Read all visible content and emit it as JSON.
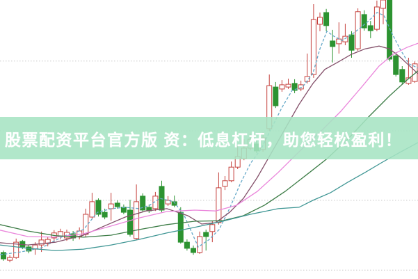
{
  "banner": {
    "text": "股票配资平台官方版 资：低息杠杆，助您轻松盈利！",
    "bg_color": "#a6e4c3",
    "text_color": "#ffffff"
  },
  "chart_data": {
    "type": "candlestick",
    "title": "",
    "xlabel": "",
    "ylabel": "",
    "note": "no axis tick labels visible; prices are relative units 0-100 of chart height",
    "ylim": [
      0,
      100
    ],
    "x_start": 5,
    "x_step": 9.1,
    "grid_on": true,
    "gridlines": [
      78.1,
      53.1,
      28.2,
      3.2
    ],
    "grid_color": "#c8c8c8",
    "up_color": "#c5403c",
    "down_color": "#2c9331",
    "candles": [
      [
        9.5,
        10.2,
        6.5,
        7.2
      ],
      [
        6.7,
        8.5,
        6.0,
        7.7
      ],
      [
        7.7,
        14.5,
        7.2,
        13.2
      ],
      [
        13.5,
        14.0,
        10.7,
        11.5
      ],
      [
        11.5,
        12.2,
        9.2,
        10.0
      ],
      [
        10.7,
        13.2,
        8.7,
        12.2
      ],
      [
        12.2,
        17.0,
        9.7,
        14.0
      ],
      [
        12.7,
        15.0,
        11.7,
        14.2
      ],
      [
        14.7,
        17.5,
        13.0,
        16.5
      ],
      [
        15.2,
        18.0,
        14.2,
        17.0
      ],
      [
        14.7,
        17.7,
        13.7,
        16.7
      ],
      [
        16.2,
        17.2,
        13.7,
        14.7
      ],
      [
        15.2,
        18.5,
        14.2,
        17.2
      ],
      [
        16.0,
        25.2,
        15.2,
        23.2
      ],
      [
        22.2,
        30.9,
        21.4,
        27.7
      ],
      [
        28.2,
        28.9,
        22.4,
        23.2
      ],
      [
        23.9,
        25.2,
        21.4,
        22.2
      ],
      [
        25.2,
        30.9,
        20.9,
        26.9
      ],
      [
        27.2,
        28.2,
        25.2,
        25.9
      ],
      [
        25.7,
        26.7,
        23.2,
        23.9
      ],
      [
        24.7,
        28.4,
        15.2,
        16.0
      ],
      [
        14.5,
        33.9,
        14.0,
        27.7
      ],
      [
        29.7,
        30.7,
        23.9,
        24.7
      ],
      [
        25.7,
        26.7,
        23.7,
        24.4
      ],
      [
        25.2,
        31.2,
        24.4,
        29.7
      ],
      [
        33.2,
        35.2,
        23.9,
        24.7
      ],
      [
        26.9,
        29.7,
        26.2,
        28.2
      ],
      [
        27.7,
        29.9,
        25.7,
        26.4
      ],
      [
        23.9,
        25.7,
        12.7,
        13.2
      ],
      [
        13.2,
        14.2,
        10.2,
        11.0
      ],
      [
        11.0,
        12.0,
        8.7,
        9.5
      ],
      [
        9.5,
        17.0,
        9.0,
        15.2
      ],
      [
        16.7,
        17.7,
        10.2,
        15.2
      ],
      [
        17.0,
        20.7,
        13.2,
        19.5
      ],
      [
        20.2,
        38.2,
        19.5,
        32.7
      ],
      [
        33.2,
        36.9,
        31.9,
        35.2
      ],
      [
        35.2,
        42.1,
        34.7,
        40.1
      ],
      [
        40.1,
        47.6,
        39.4,
        43.9
      ],
      [
        43.1,
        50.1,
        42.6,
        46.9
      ],
      [
        46.9,
        52.1,
        46.1,
        50.1
      ],
      [
        48.4,
        49.6,
        45.1,
        45.9
      ],
      [
        46.4,
        52.6,
        45.6,
        50.6
      ],
      [
        53.9,
        73.3,
        53.1,
        69.3
      ],
      [
        68.8,
        70.6,
        61.3,
        62.1
      ],
      [
        68.1,
        71.3,
        67.1,
        69.6
      ],
      [
        68.8,
        71.8,
        68.1,
        69.8
      ],
      [
        70.1,
        71.6,
        66.6,
        67.6
      ],
      [
        68.1,
        71.1,
        67.3,
        69.6
      ],
      [
        70.8,
        80.8,
        70.1,
        72.6
      ],
      [
        73.3,
        98.5,
        72.1,
        93.0
      ],
      [
        91.3,
        95.5,
        88.8,
        93.8
      ],
      [
        95.5,
        96.8,
        88.8,
        90.8
      ],
      [
        85.3,
        89.3,
        77.6,
        83.3
      ],
      [
        84.3,
        92.0,
        80.8,
        86.0
      ],
      [
        85.0,
        91.5,
        83.8,
        87.0
      ],
      [
        87.5,
        88.8,
        79.3,
        82.0
      ],
      [
        82.5,
        97.0,
        81.8,
        95.8
      ],
      [
        94.8,
        96.3,
        89.0,
        90.0
      ],
      [
        90.8,
        92.5,
        86.3,
        89.0
      ],
      [
        89.5,
        99.8,
        88.8,
        97.5
      ],
      [
        97.0,
        100,
        91.3,
        100
      ],
      [
        100,
        100,
        78.0,
        78.8
      ],
      [
        80.0,
        81.3,
        72.6,
        73.3
      ],
      [
        75.1,
        76.3,
        69.8,
        70.6
      ],
      [
        70.1,
        79.3,
        69.6,
        72.1
      ],
      [
        70.8,
        78.0,
        70.3,
        77.1
      ],
      [
        76.3,
        77.1,
        70.3,
        71.3
      ]
    ],
    "series": [
      {
        "name": "ma-fast-blue",
        "color": "#64a8c8",
        "dashed": true,
        "points": [
          [
            0,
            8.7
          ],
          [
            30,
            9.7
          ],
          [
            60,
            11.2
          ],
          [
            90,
            15.2
          ],
          [
            120,
            17.7
          ],
          [
            140,
            23.9
          ],
          [
            160,
            25.2
          ],
          [
            180,
            25.7
          ],
          [
            200,
            25.2
          ],
          [
            215,
            26.4
          ],
          [
            230,
            28.9
          ],
          [
            250,
            27.7
          ],
          [
            265,
            22.7
          ],
          [
            285,
            11.5
          ],
          [
            300,
            14.0
          ],
          [
            315,
            17.7
          ],
          [
            330,
            25.2
          ],
          [
            345,
            33.9
          ],
          [
            360,
            41.4
          ],
          [
            375,
            46.4
          ],
          [
            390,
            53.9
          ],
          [
            405,
            61.3
          ],
          [
            420,
            67.6
          ],
          [
            435,
            68.8
          ],
          [
            450,
            73.8
          ],
          [
            460,
            82.5
          ],
          [
            470,
            88.8
          ],
          [
            480,
            87.0
          ],
          [
            492,
            85.5
          ],
          [
            505,
            87.5
          ],
          [
            518,
            90.0
          ],
          [
            530,
            92.5
          ],
          [
            542,
            95.5
          ],
          [
            552,
            94.5
          ],
          [
            562,
            88.8
          ],
          [
            575,
            82.5
          ],
          [
            588,
            77.1
          ],
          [
            601,
            75.6
          ]
        ]
      },
      {
        "name": "ma-maroon",
        "color": "#84506a",
        "dashed": false,
        "points": [
          [
            0,
            13.0
          ],
          [
            40,
            12.2
          ],
          [
            80,
            13.2
          ],
          [
            120,
            15.7
          ],
          [
            150,
            19.0
          ],
          [
            180,
            22.2
          ],
          [
            210,
            24.4
          ],
          [
            240,
            25.2
          ],
          [
            270,
            22.7
          ],
          [
            290,
            19.7
          ],
          [
            310,
            20.2
          ],
          [
            330,
            23.9
          ],
          [
            350,
            28.9
          ],
          [
            370,
            36.4
          ],
          [
            390,
            45.1
          ],
          [
            410,
            53.9
          ],
          [
            430,
            62.6
          ],
          [
            450,
            70.1
          ],
          [
            467,
            75.1
          ],
          [
            485,
            77.6
          ],
          [
            505,
            80.5
          ],
          [
            525,
            82.5
          ],
          [
            545,
            83.5
          ],
          [
            560,
            82.5
          ],
          [
            575,
            79.6
          ],
          [
            590,
            76.1
          ],
          [
            601,
            73.6
          ]
        ]
      },
      {
        "name": "ma-pink",
        "color": "#ea85db",
        "dashed": false,
        "points": [
          [
            0,
            17.5
          ],
          [
            40,
            15.2
          ],
          [
            80,
            15.0
          ],
          [
            120,
            16.2
          ],
          [
            160,
            19.0
          ],
          [
            200,
            21.9
          ],
          [
            240,
            24.2
          ],
          [
            280,
            24.7
          ],
          [
            310,
            24.4
          ],
          [
            340,
            26.4
          ],
          [
            370,
            31.4
          ],
          [
            400,
            38.2
          ],
          [
            430,
            45.6
          ],
          [
            460,
            52.6
          ],
          [
            490,
            60.1
          ],
          [
            520,
            68.8
          ],
          [
            545,
            76.3
          ],
          [
            565,
            80.5
          ],
          [
            585,
            83.0
          ],
          [
            601,
            84.5
          ]
        ]
      },
      {
        "name": "ma-dark-green",
        "color": "#3c7c46",
        "dashed": false,
        "points": [
          [
            0,
            19.5
          ],
          [
            40,
            17.2
          ],
          [
            80,
            15.5
          ],
          [
            120,
            15.0
          ],
          [
            160,
            15.7
          ],
          [
            200,
            17.7
          ],
          [
            240,
            19.5
          ],
          [
            280,
            20.7
          ],
          [
            320,
            20.9
          ],
          [
            350,
            22.7
          ],
          [
            380,
            26.4
          ],
          [
            410,
            31.4
          ],
          [
            440,
            37.2
          ],
          [
            470,
            43.1
          ],
          [
            500,
            50.1
          ],
          [
            530,
            58.1
          ],
          [
            560,
            65.6
          ],
          [
            585,
            71.3
          ],
          [
            601,
            74.6
          ]
        ]
      },
      {
        "name": "ma-teal",
        "color": "#3f9694",
        "dashed": false,
        "points": [
          [
            0,
            12.2
          ],
          [
            40,
            11.0
          ],
          [
            80,
            10.2
          ],
          [
            120,
            10.7
          ],
          [
            160,
            12.2
          ],
          [
            200,
            14.2
          ],
          [
            240,
            16.5
          ],
          [
            280,
            18.5
          ],
          [
            320,
            20.7
          ],
          [
            360,
            23.2
          ],
          [
            400,
            25.2
          ],
          [
            430,
            25.7
          ],
          [
            450,
            28.2
          ],
          [
            475,
            30.9
          ],
          [
            500,
            34.7
          ],
          [
            525,
            38.2
          ],
          [
            550,
            41.9
          ],
          [
            575,
            45.4
          ],
          [
            601,
            48.9
          ]
        ]
      }
    ],
    "legend_position": "none"
  }
}
